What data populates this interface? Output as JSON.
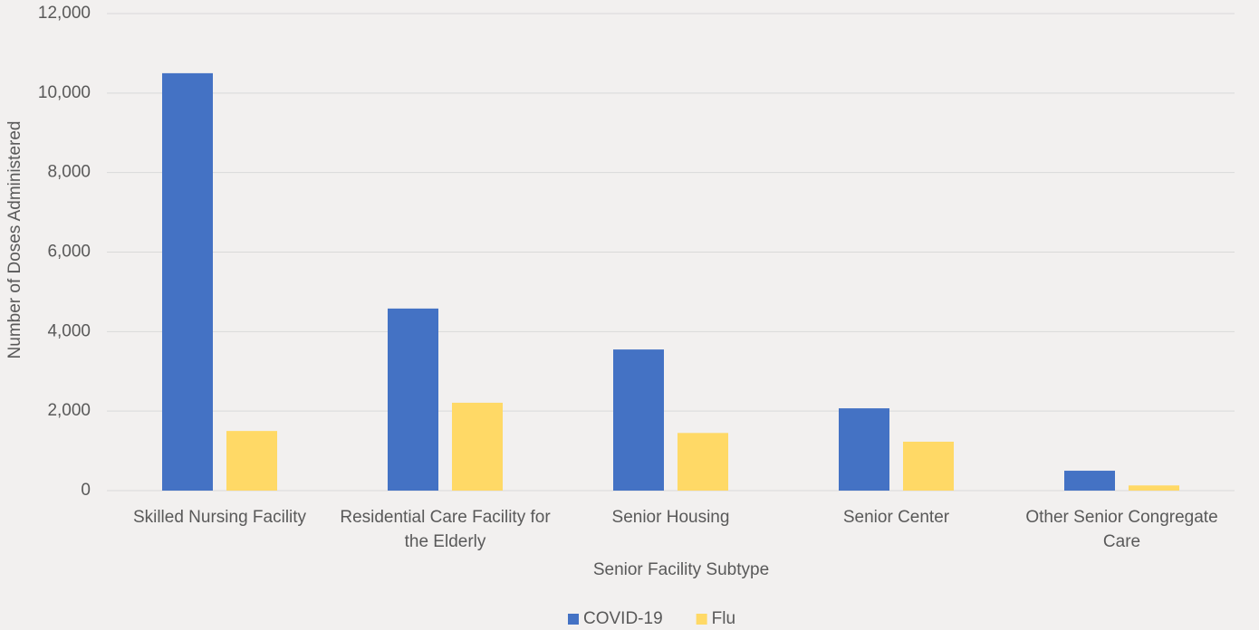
{
  "chart_data": {
    "type": "bar",
    "x_label": "Senior Facility Subtype",
    "y_label": "Number of Doses Administered",
    "categories": [
      "Skilled Nursing Facility",
      "Residential Care Facility for the Elderly",
      "Senior Housing",
      "Senior Center",
      "Other Senior Congregate Care"
    ],
    "series": [
      {
        "name": "COVID-19",
        "color": "#4472c4",
        "values": [
          10500,
          4580,
          3550,
          2070,
          500
        ]
      },
      {
        "name": "Flu",
        "color": "#ffd966",
        "values": [
          1500,
          2210,
          1450,
          1230,
          130
        ]
      }
    ],
    "ylim": [
      0,
      12000
    ],
    "yticks": [
      0,
      {
        "value": 2000,
        "label": "2,000"
      },
      {
        "value": 4000,
        "label": "4,000"
      },
      {
        "value": 6000,
        "label": "6,000"
      },
      {
        "value": 8000,
        "label": "8,000"
      },
      {
        "value": 10000,
        "label": "10,000"
      },
      {
        "value": 12000,
        "label": "12,000"
      }
    ],
    "grid": true,
    "legend": "bottom"
  }
}
